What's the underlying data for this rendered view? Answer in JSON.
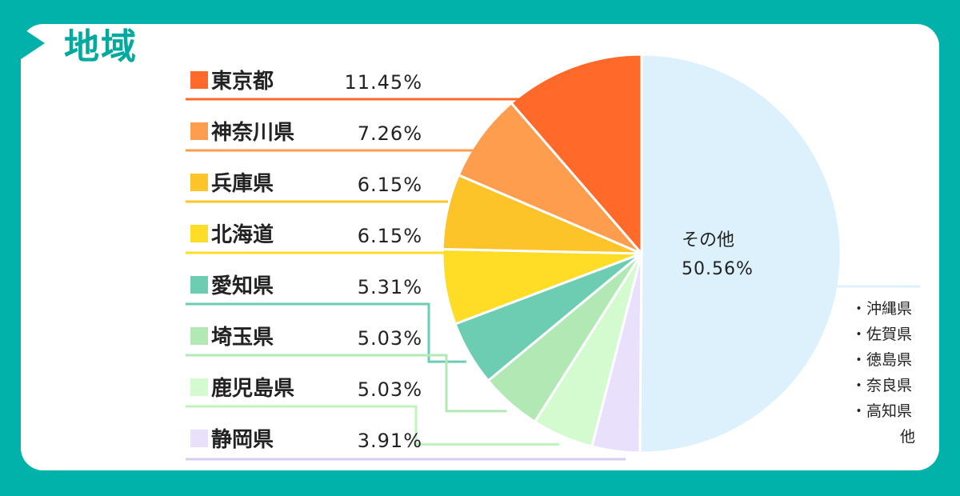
{
  "title": "地域",
  "chart_data": {
    "type": "pie",
    "categories": [
      "東京都",
      "神奈川県",
      "兵庫県",
      "北海道",
      "愛知県",
      "埼玉県",
      "鹿児島県",
      "静岡県",
      "その他"
    ],
    "values": [
      11.45,
      7.26,
      6.15,
      6.15,
      5.31,
      5.03,
      5.03,
      3.91,
      50.56
    ],
    "value_labels": [
      "11.45%",
      "7.26%",
      "6.15%",
      "6.15%",
      "5.31%",
      "5.03%",
      "5.03%",
      "3.91%",
      "50.56%"
    ],
    "colors": [
      "#ff6a2b",
      "#ff9d4e",
      "#fdc42a",
      "#ffdd27",
      "#6ccdb3",
      "#b1e8b4",
      "#d4fbd0",
      "#e9e0fb",
      "#dcf1fc"
    ],
    "other": {
      "label": "その他",
      "value_label": "50.56%",
      "details": [
        "・沖縄県",
        "・佐賀県",
        "・徳島県",
        "・奈良県",
        "・高知県",
        "他"
      ]
    }
  }
}
